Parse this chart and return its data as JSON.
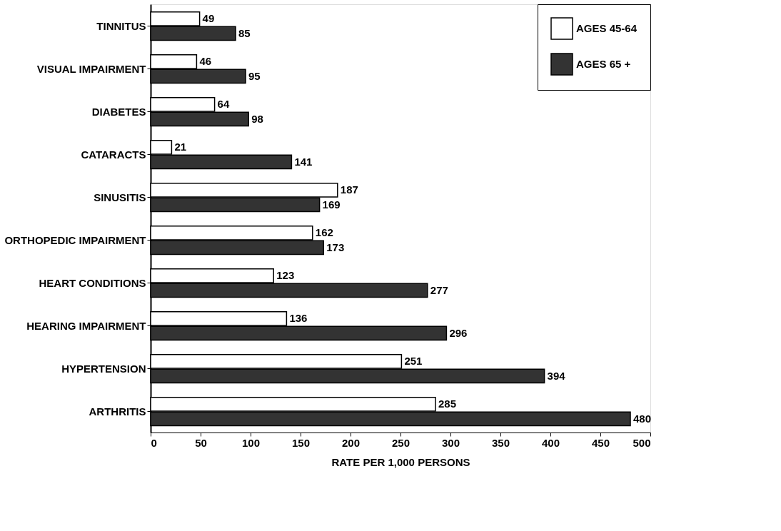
{
  "chart_data": {
    "type": "bar",
    "orientation": "horizontal",
    "xlabel": "RATE PER 1,000 PERSONS",
    "categories": [
      "TINNITUS",
      "VISUAL IMPAIRMENT",
      "DIABETES",
      "CATARACTS",
      "SINUSITIS",
      "ORTHOPEDIC IMPAIRMENT",
      "HEART CONDITIONS",
      "HEARING IMPAIRMENT",
      "HYPERTENSION",
      "ARTHRITIS"
    ],
    "series": [
      {
        "name": "AGES 45-64",
        "color": "#ffffff",
        "values": [
          49,
          46,
          64,
          21,
          187,
          162,
          123,
          136,
          251,
          285
        ]
      },
      {
        "name": "AGES 65 +",
        "color": "#333333",
        "values": [
          85,
          95,
          98,
          141,
          169,
          173,
          277,
          296,
          394,
          480
        ]
      }
    ],
    "xlim": [
      0,
      500
    ],
    "xticks": [
      0,
      50,
      100,
      150,
      200,
      250,
      300,
      350,
      400,
      450,
      500
    ],
    "data_labels": true,
    "grid": false,
    "legend": "top right"
  }
}
